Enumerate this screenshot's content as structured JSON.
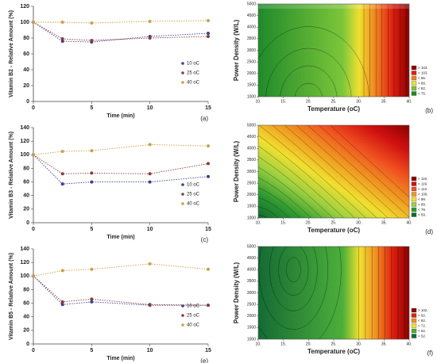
{
  "chart_data": [
    {
      "type": "scatter",
      "y_label": "Vitamin B2 - Relative Amount (%)",
      "x_label": "Time (min)",
      "panel_label": "(a)",
      "x": [
        0,
        2.5,
        5,
        10,
        15
      ],
      "xlim": [
        0,
        15
      ],
      "xticks": [
        0,
        5,
        10,
        15
      ],
      "ylim": [
        0,
        120
      ],
      "yticks": [
        0,
        20,
        40,
        60,
        80,
        100,
        120
      ],
      "series": [
        {
          "name": "10 oC",
          "color": "#3b3f8c",
          "values": [
            100,
            76,
            75,
            82,
            86
          ]
        },
        {
          "name": "25 oC",
          "color": "#8b3a3a",
          "values": [
            100,
            79,
            77,
            80,
            82
          ]
        },
        {
          "name": "40 oC",
          "color": "#c9a04a",
          "values": [
            100,
            100,
            99,
            101,
            102
          ]
        }
      ]
    },
    {
      "type": "contour",
      "y_label": "Power Density (W/L)",
      "x_label": "Temperature (oC)",
      "panel_label": "(b)",
      "xlim": [
        10,
        40
      ],
      "xticks": [
        {
          "value": 10,
          "label": "10."
        },
        {
          "value": 15,
          "label": "15."
        },
        {
          "value": 20,
          "label": "20."
        },
        {
          "value": 25,
          "label": "25."
        },
        {
          "value": 30,
          "label": "30."
        },
        {
          "value": 35,
          "label": "35."
        },
        {
          "value": 40,
          "label": "40."
        }
      ],
      "ylim": [
        1000,
        5000
      ],
      "yticks": [
        1000,
        1500,
        2000,
        2500,
        3000,
        3500,
        4000,
        4500,
        5000
      ],
      "legend": [
        {
          "label": "> 103.",
          "color": "#8b0000"
        },
        {
          "label": "< 103.",
          "color": "#e02010"
        },
        {
          "label": "< 96.",
          "color": "#f08020"
        },
        {
          "label": "< 89.",
          "color": "#f0e030"
        },
        {
          "label": "< 82.",
          "color": "#7cc63a"
        },
        {
          "label": "< 75.",
          "color": "#1f8a2a"
        }
      ]
    },
    {
      "type": "scatter",
      "y_label": "Vitamin B3 - Relative Amount (%)",
      "x_label": "Time (min)",
      "panel_label": "(c)",
      "x": [
        0,
        2.5,
        5,
        10,
        15
      ],
      "xlim": [
        0,
        15
      ],
      "xticks": [
        0,
        5,
        10,
        15
      ],
      "ylim": [
        0,
        140
      ],
      "yticks": [
        0,
        20,
        40,
        60,
        80,
        100,
        120,
        140
      ],
      "series": [
        {
          "name": "10 oC",
          "color": "#3b3f8c",
          "values": [
            100,
            57,
            60,
            60,
            68
          ]
        },
        {
          "name": "25 oC",
          "color": "#8b3a3a",
          "values": [
            100,
            72,
            73,
            72,
            87
          ]
        },
        {
          "name": "40 oC",
          "color": "#c9a04a",
          "values": [
            100,
            105,
            106,
            115,
            113
          ]
        }
      ]
    },
    {
      "type": "contour",
      "y_label": "Power Density (W/L)",
      "x_label": "Temperature (oC)",
      "panel_label": "(d)",
      "xlim": [
        10,
        40
      ],
      "xticks": [
        {
          "value": 10,
          "label": "10."
        },
        {
          "value": 15,
          "label": "15."
        },
        {
          "value": 20,
          "label": "20."
        },
        {
          "value": 25,
          "label": "25."
        },
        {
          "value": 30,
          "label": "30."
        },
        {
          "value": 35,
          "label": "35."
        },
        {
          "value": 40,
          "label": "40."
        }
      ],
      "ylim": [
        1000,
        5000
      ],
      "yticks": [
        1000,
        1500,
        2000,
        2500,
        3000,
        3500,
        4000,
        4500,
        5000
      ],
      "legend": [
        {
          "label": "> 119.",
          "color": "#8b0000"
        },
        {
          "label": "< 119.",
          "color": "#d01010"
        },
        {
          "label": "< 113.",
          "color": "#f05020"
        },
        {
          "label": "< 106.",
          "color": "#f09a20"
        },
        {
          "label": "< 99.",
          "color": "#f0e030"
        },
        {
          "label": "< 89.",
          "color": "#9bd040"
        },
        {
          "label": "< 79.",
          "color": "#2e9a30"
        },
        {
          "label": "< 59.",
          "color": "#106a30"
        }
      ]
    },
    {
      "type": "scatter",
      "y_label": "Vitamin B5 - Relative Amount (%)",
      "x_label": "Time (min)",
      "panel_label": "(e)",
      "x": [
        0,
        2.5,
        5,
        10,
        15
      ],
      "xlim": [
        0,
        15
      ],
      "xticks": [
        0,
        5,
        10,
        15
      ],
      "ylim": [
        0,
        140
      ],
      "yticks": [
        0,
        20,
        40,
        60,
        80,
        100,
        120,
        140
      ],
      "series": [
        {
          "name": "10 oC",
          "color": "#3b3f8c",
          "values": [
            100,
            58,
            62,
            57,
            57
          ]
        },
        {
          "name": "25 oC",
          "color": "#8b3a3a",
          "values": [
            100,
            62,
            66,
            58,
            57
          ]
        },
        {
          "name": "40 oC",
          "color": "#c9a04a",
          "values": [
            100,
            108,
            110,
            118,
            110
          ]
        }
      ]
    },
    {
      "type": "contour",
      "y_label": "Power Density (W/L)",
      "x_label": "Temperature (oC)",
      "panel_label": "(f)",
      "xlim": [
        10,
        40
      ],
      "xticks": [
        {
          "value": 10,
          "label": "10."
        },
        {
          "value": 15,
          "label": "15."
        },
        {
          "value": 20,
          "label": "20."
        },
        {
          "value": 25,
          "label": "25."
        },
        {
          "value": 30,
          "label": "30."
        },
        {
          "value": 35,
          "label": "35."
        },
        {
          "value": 40,
          "label": "40."
        }
      ],
      "ylim": [
        1000,
        5000
      ],
      "yticks": [
        1000,
        1500,
        2000,
        2500,
        3000,
        3500,
        4000,
        4500,
        5000
      ],
      "legend": [
        {
          "label": "> 102.",
          "color": "#8b0000"
        },
        {
          "label": "< 92.",
          "color": "#e02010"
        },
        {
          "label": "< 82.",
          "color": "#f09020"
        },
        {
          "label": "< 72.",
          "color": "#f0e030"
        },
        {
          "label": "< 62.",
          "color": "#4caf3a"
        },
        {
          "label": "< 52.",
          "color": "#146b34"
        }
      ]
    }
  ]
}
